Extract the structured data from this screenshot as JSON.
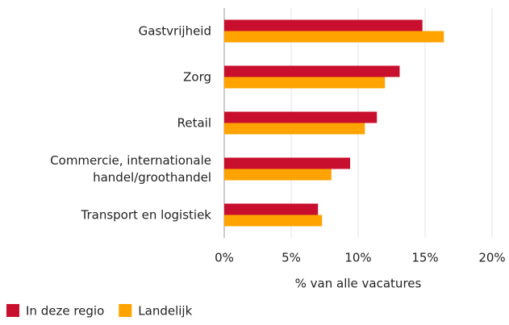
{
  "chart_data": {
    "type": "bar",
    "orientation": "horizontal",
    "categories": [
      "Gastvrijheid",
      "Zorg",
      "Retail",
      "Commercie, internationale handel/groothandel",
      "Transport en logistiek"
    ],
    "series": [
      {
        "name": "In deze regio",
        "color": "#c8102e",
        "values": [
          14.8,
          13.1,
          11.4,
          9.4,
          7.0
        ]
      },
      {
        "name": "Landelijk",
        "color": "#ffa300",
        "values": [
          16.4,
          12.0,
          10.5,
          8.0,
          7.3
        ]
      }
    ],
    "xlabel": "% van alle vacatures",
    "xlim": [
      0,
      20
    ],
    "xticks": [
      {
        "value": 0,
        "label": "0%"
      },
      {
        "value": 5,
        "label": "5%"
      },
      {
        "value": 10,
        "label": "10%"
      },
      {
        "value": 15,
        "label": "15%"
      },
      {
        "value": 20,
        "label": "20%"
      }
    ],
    "grid": true,
    "legend": "bottom-left"
  }
}
